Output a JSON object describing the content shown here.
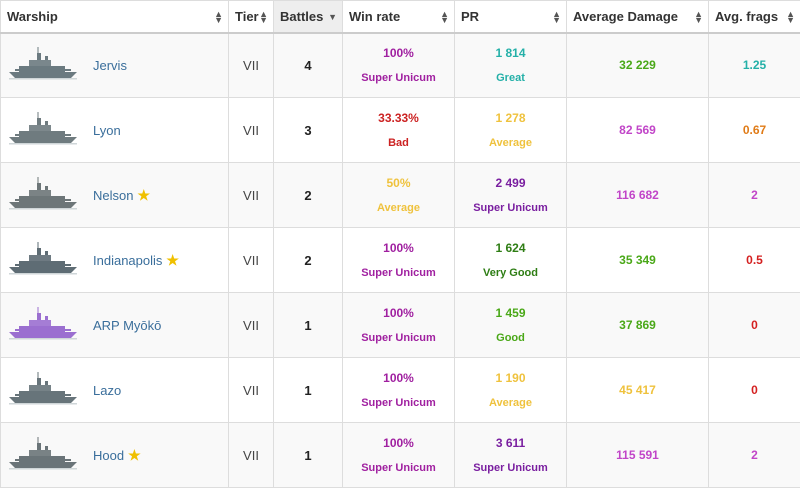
{
  "header": {
    "warship": "Warship",
    "tier": "Tier",
    "battles": "Battles",
    "win_rate": "Win rate",
    "pr": "PR",
    "avg_damage": "Average Damage",
    "avg_frags": "Avg. frags"
  },
  "rows": [
    {
      "name": "Jervis",
      "star": false,
      "tier": "VII",
      "battles": "4",
      "win_rate": "100%",
      "win_rate_label": "Super Unicum",
      "pr": "1 814",
      "pr_label": "Great",
      "avg_damage": "32 229",
      "avg_frags": "1.25",
      "ship_color": "#6b7a80"
    },
    {
      "name": "Lyon",
      "star": false,
      "tier": "VII",
      "battles": "3",
      "win_rate": "33.33%",
      "win_rate_label": "Bad",
      "pr": "1 278",
      "pr_label": "Average",
      "avg_damage": "82 569",
      "avg_frags": "0.67",
      "ship_color": "#6f7b7f"
    },
    {
      "name": "Nelson",
      "star": true,
      "tier": "VII",
      "battles": "2",
      "win_rate": "50%",
      "win_rate_label": "Average",
      "pr": "2 499",
      "pr_label": "Super Unicum",
      "avg_damage": "116 682",
      "avg_frags": "2",
      "ship_color": "#6d7678"
    },
    {
      "name": "Indianapolis",
      "star": true,
      "tier": "VII",
      "battles": "2",
      "win_rate": "100%",
      "win_rate_label": "Super Unicum",
      "pr": "1 624",
      "pr_label": "Very Good",
      "avg_damage": "35 349",
      "avg_frags": "0.5",
      "ship_color": "#5e6c74"
    },
    {
      "name": "ARP Myōkō",
      "star": false,
      "tier": "VII",
      "battles": "1",
      "win_rate": "100%",
      "win_rate_label": "Super Unicum",
      "pr": "1 459",
      "pr_label": "Good",
      "avg_damage": "37 869",
      "avg_frags": "0",
      "ship_color": "#9b6fd0"
    },
    {
      "name": "Lazo",
      "star": false,
      "tier": "VII",
      "battles": "1",
      "win_rate": "100%",
      "win_rate_label": "Super Unicum",
      "pr": "1 190",
      "pr_label": "Average",
      "avg_damage": "45 417",
      "avg_frags": "0",
      "ship_color": "#67747a"
    },
    {
      "name": "Hood",
      "star": true,
      "tier": "VII",
      "battles": "1",
      "win_rate": "100%",
      "win_rate_label": "Super Unicum",
      "pr": "3 611",
      "pr_label": "Super Unicum",
      "avg_damage": "115 591",
      "avg_frags": "2",
      "ship_color": "#6a7478"
    }
  ],
  "colors": {
    "Super Unicum": "#a020a0",
    "Great": "#24b0a8",
    "Bad": "#cc2222",
    "Average": "#efc23d",
    "Very Good": "#2e7d14",
    "Good": "#4aa818"
  },
  "cell_colors": {
    "win_rate": [
      "#a020a0",
      "#cc2222",
      "#efc23d",
      "#a020a0",
      "#a020a0",
      "#a020a0",
      "#a020a0"
    ],
    "pr": [
      "#24b0a8",
      "#efc23d",
      "#7a1fa0",
      "#2e7d14",
      "#4aa818",
      "#efc23d",
      "#7a1fa0"
    ],
    "avg_damage": [
      "#4aa818",
      "#c145c8",
      "#c145c8",
      "#4aa818",
      "#4aa818",
      "#efc23d",
      "#c145c8"
    ],
    "avg_frags": [
      "#24b0a8",
      "#e07b17",
      "#c145c8",
      "#d42020",
      "#d42020",
      "#d42020",
      "#c145c8"
    ]
  }
}
